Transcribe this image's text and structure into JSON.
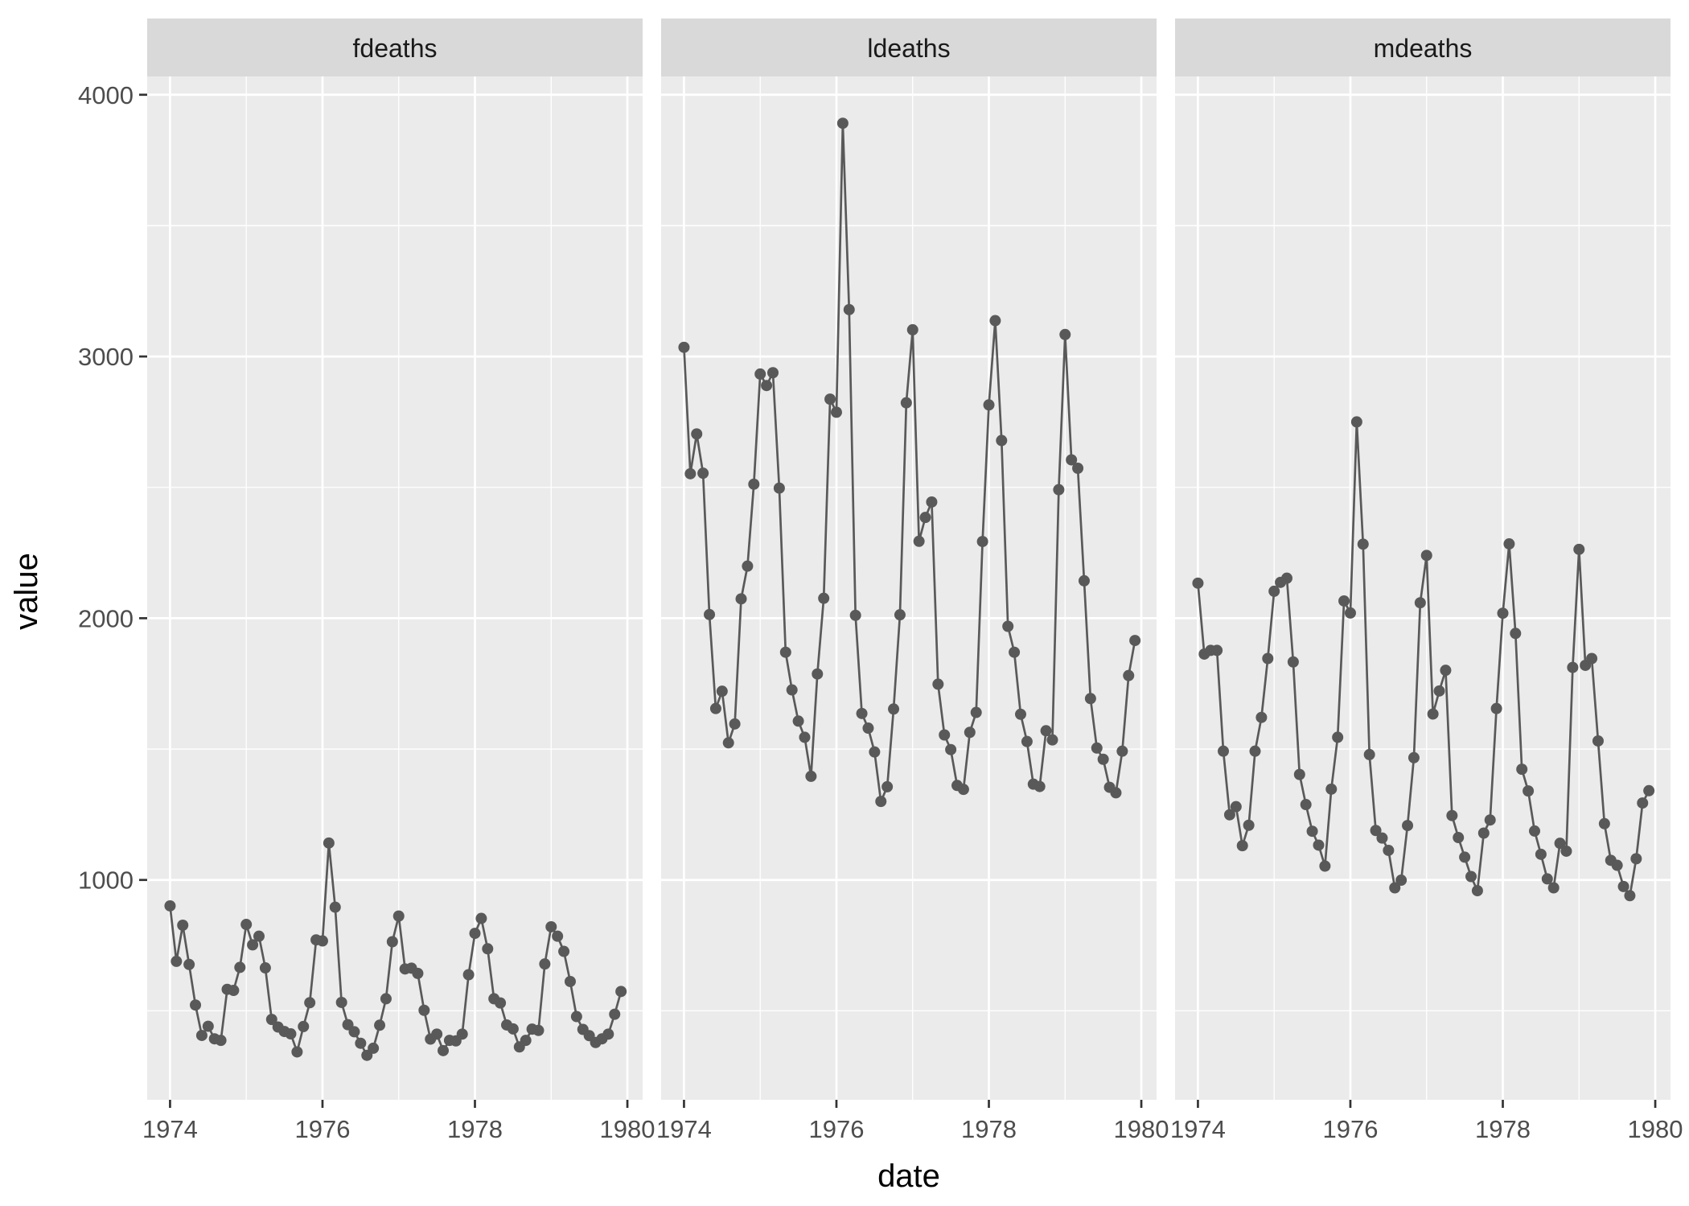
{
  "chart_data": {
    "type": "line",
    "xlabel": "date",
    "ylabel": "value",
    "x_ticks": [
      "1974",
      "1976",
      "1978",
      "1980"
    ],
    "y_ticks": [
      "1000",
      "2000",
      "3000",
      "4000"
    ],
    "xlim": [
      1973.7,
      1980.2
    ],
    "ylim": [
      160,
      4070
    ],
    "grid": true,
    "line_color": "#595959",
    "panel_bg": "#EBEBEB",
    "strip_bg": "#D9D9D9",
    "start": "1974-01",
    "frequency": "monthly",
    "panels": [
      {
        "name": "fdeaths",
        "values": [
          901,
          689,
          827,
          677,
          522,
          406,
          441,
          393,
          387,
          582,
          578,
          666,
          830,
          752,
          785,
          664,
          467,
          438,
          421,
          412,
          343,
          440,
          531,
          771,
          767,
          1141,
          896,
          532,
          447,
          420,
          376,
          330,
          357,
          445,
          546,
          764,
          862,
          660,
          663,
          643,
          502,
          392,
          411,
          348,
          387,
          385,
          411,
          638,
          796,
          853,
          737,
          546,
          530,
          446,
          431,
          362,
          387,
          430,
          425,
          679,
          821,
          785,
          727,
          612,
          478,
          429,
          405,
          379,
          393,
          411,
          487,
          574
        ]
      },
      {
        "name": "ldeaths",
        "values": [
          3035,
          2552,
          2704,
          2554,
          2014,
          1655,
          1721,
          1524,
          1596,
          2074,
          2199,
          2512,
          2933,
          2889,
          2938,
          2497,
          1870,
          1726,
          1607,
          1545,
          1396,
          1787,
          2076,
          2837,
          2787,
          3891,
          3179,
          2011,
          1636,
          1580,
          1489,
          1300,
          1356,
          1653,
          2013,
          2823,
          3102,
          2294,
          2385,
          2444,
          1748,
          1554,
          1498,
          1361,
          1346,
          1564,
          1640,
          2293,
          2815,
          3137,
          2679,
          1969,
          1870,
          1633,
          1529,
          1366,
          1357,
          1570,
          1535,
          2491,
          3084,
          2605,
          2573,
          2143,
          1693,
          1504,
          1461,
          1354,
          1333,
          1492,
          1781,
          1915
        ]
      },
      {
        "name": "mdeaths",
        "values": [
          2134,
          1863,
          1877,
          1877,
          1492,
          1249,
          1280,
          1131,
          1209,
          1492,
          1621,
          1846,
          2103,
          2137,
          2153,
          1833,
          1403,
          1288,
          1186,
          1133,
          1053,
          1347,
          1545,
          2066,
          2020,
          2750,
          2283,
          1479,
          1189,
          1160,
          1113,
          970,
          999,
          1208,
          1467,
          2059,
          2240,
          1634,
          1722,
          1801,
          1246,
          1162,
          1087,
          1013,
          959,
          1179,
          1229,
          1655,
          2019,
          2284,
          1942,
          1423,
          1340,
          1187,
          1098,
          1004,
          970,
          1140,
          1110,
          1812,
          2263,
          1820,
          1846,
          1531,
          1215,
          1075,
          1056,
          975,
          940,
          1081,
          1294,
          1341
        ]
      }
    ]
  }
}
